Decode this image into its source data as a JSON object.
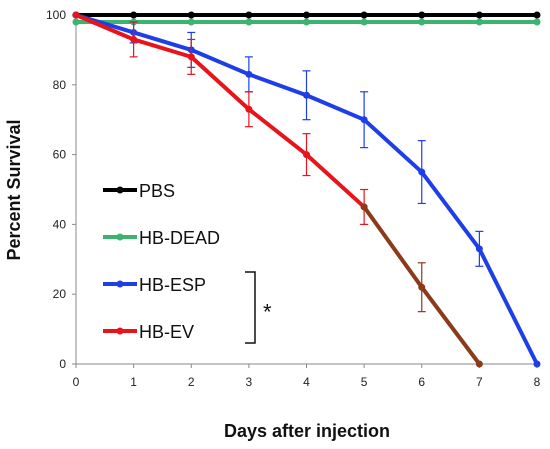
{
  "chart_data": {
    "type": "line",
    "xlabel": "Days after injection",
    "ylabel": "Percent Survival",
    "xlim": [
      0,
      8
    ],
    "ylim": [
      0,
      100
    ],
    "xticks": [
      0,
      1,
      2,
      3,
      4,
      5,
      6,
      7,
      8
    ],
    "yticks": [
      0,
      20,
      40,
      60,
      80,
      100
    ],
    "grid": false,
    "legend_position": "left-center",
    "series": [
      {
        "name": "PBS",
        "color": "#000000",
        "x": [
          0,
          1,
          2,
          3,
          4,
          5,
          6,
          7,
          8
        ],
        "y": [
          100,
          100,
          100,
          100,
          100,
          100,
          100,
          100,
          100
        ],
        "error": [
          0,
          0,
          0,
          0,
          0,
          0,
          0,
          0,
          0
        ]
      },
      {
        "name": "HB-DEAD",
        "color": "#3cb371",
        "x": [
          0,
          1,
          2,
          3,
          4,
          5,
          6,
          7,
          8
        ],
        "y": [
          98,
          98,
          98,
          98,
          98,
          98,
          98,
          98,
          98
        ],
        "error": [
          0,
          0,
          0,
          0,
          0,
          0,
          0,
          0,
          0
        ]
      },
      {
        "name": "HB-ESP",
        "color": "#1f3fe6",
        "x": [
          0,
          1,
          2,
          3,
          4,
          5,
          6,
          7,
          8
        ],
        "y": [
          100,
          95,
          90,
          83,
          77,
          70,
          55,
          33,
          0
        ],
        "error": [
          0,
          3,
          5,
          5,
          7,
          8,
          9,
          5,
          0
        ]
      },
      {
        "name": "HB-EV",
        "color": "#e8141b",
        "x": [
          0,
          1,
          2,
          3,
          4,
          5
        ],
        "y": [
          100,
          93,
          88,
          73,
          60,
          45
        ],
        "error": [
          0,
          5,
          5,
          5,
          6,
          5
        ]
      },
      {
        "name": "HB-EV",
        "color": "#8b3a1a",
        "legend": false,
        "x": [
          5,
          6,
          7
        ],
        "y": [
          45,
          22,
          0
        ],
        "error": [
          0,
          7,
          0
        ]
      }
    ],
    "annotations": [
      {
        "text": "*",
        "between": [
          "HB-ESP",
          "HB-EV"
        ]
      }
    ]
  }
}
